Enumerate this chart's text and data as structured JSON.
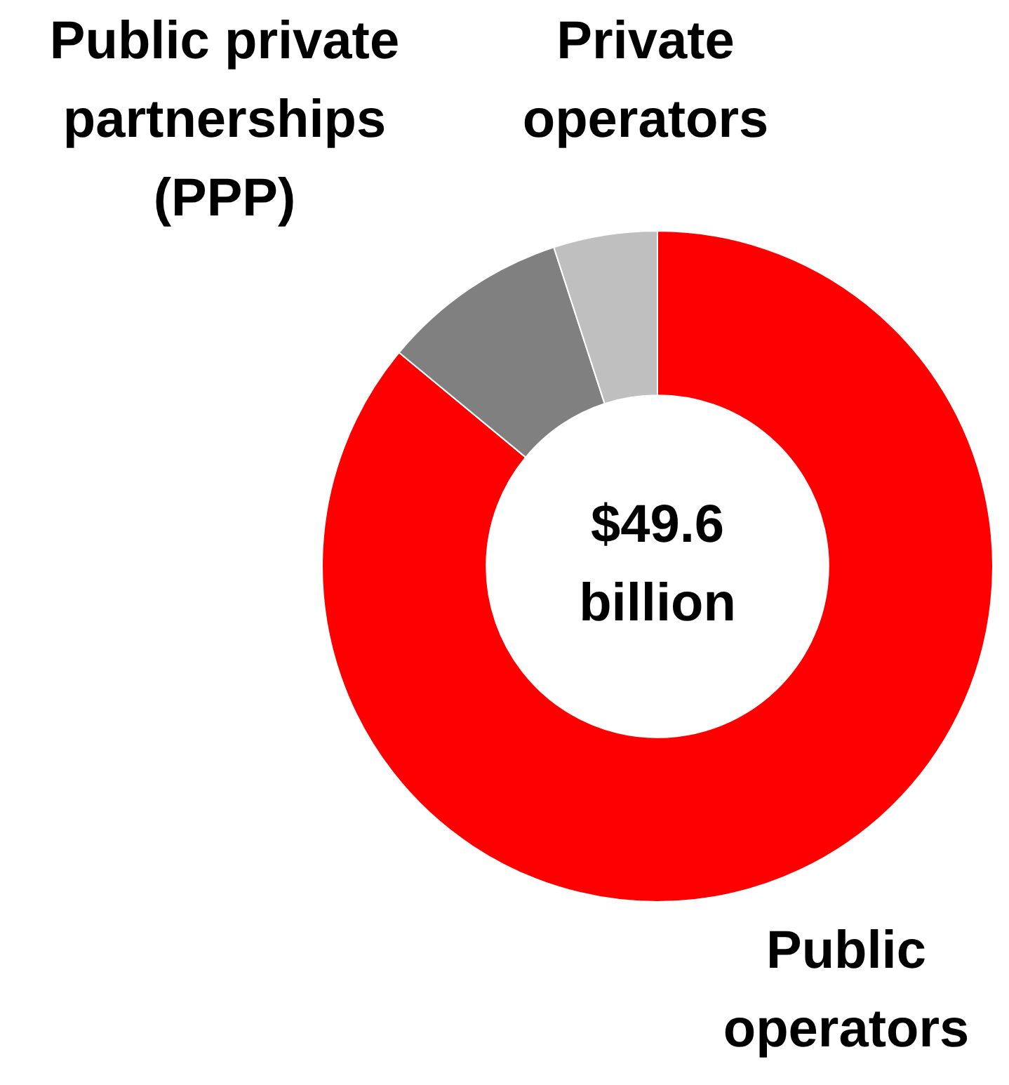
{
  "chart_data": {
    "type": "donut",
    "categories": [
      "Public operators",
      "Public private partnerships (PPP)",
      "Private operators"
    ],
    "values": [
      86,
      9,
      5
    ],
    "colors": [
      "#ff0000",
      "#808080",
      "#bfbfbf"
    ],
    "annotations": [
      "$49.6 billion"
    ],
    "legend": false
  }
}
